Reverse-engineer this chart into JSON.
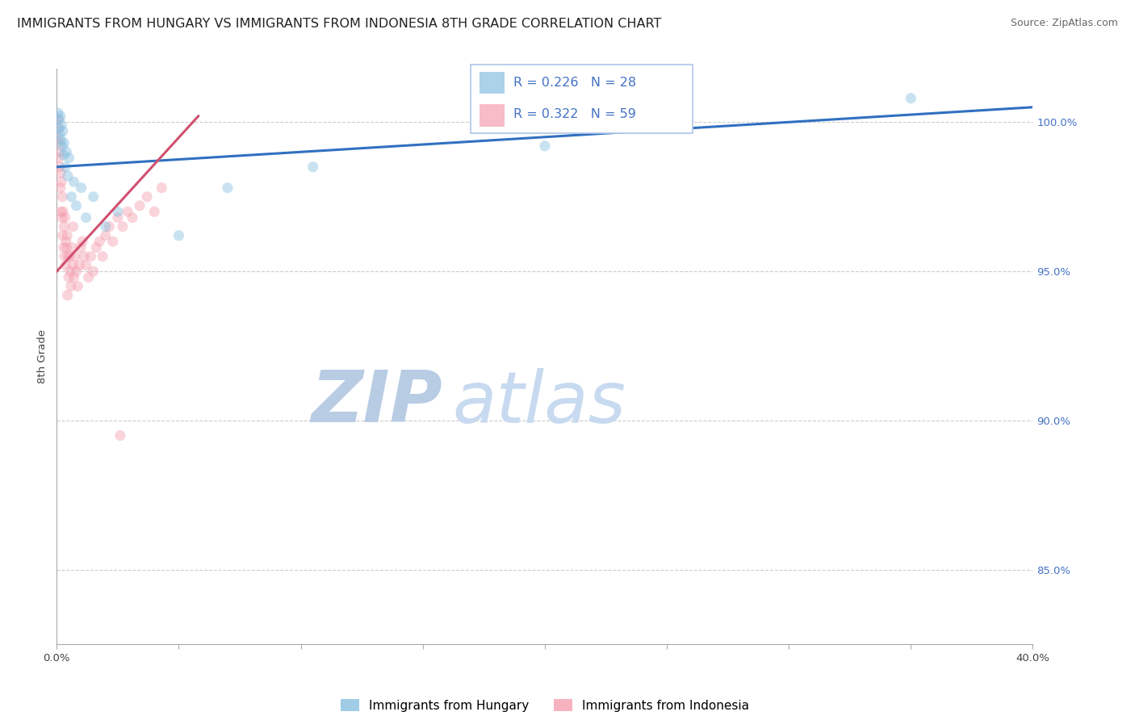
{
  "title": "IMMIGRANTS FROM HUNGARY VS IMMIGRANTS FROM INDONESIA 8TH GRADE CORRELATION CHART",
  "source": "Source: ZipAtlas.com",
  "ylabel": "8th Grade",
  "legend_hungary": "Immigrants from Hungary",
  "legend_indonesia": "Immigrants from Indonesia",
  "hungary_R": 0.226,
  "hungary_N": 28,
  "indonesia_R": 0.322,
  "indonesia_N": 59,
  "hungary_color": "#88c0e0",
  "indonesia_color": "#f4a0b0",
  "hungary_line_color": "#3070c0",
  "indonesia_line_color": "#d05070",
  "xlim": [
    0.0,
    40.0
  ],
  "ylim": [
    82.5,
    101.8
  ],
  "x_ticks": [
    0.0,
    5.0,
    10.0,
    15.0,
    20.0,
    25.0,
    30.0,
    35.0,
    40.0
  ],
  "y_ticks": [
    85.0,
    90.0,
    95.0,
    100.0
  ],
  "hungary_x": [
    0.05,
    0.08,
    0.1,
    0.12,
    0.15,
    0.18,
    0.2,
    0.22,
    0.25,
    0.28,
    0.3,
    0.35,
    0.4,
    0.45,
    0.5,
    0.6,
    0.7,
    0.8,
    1.0,
    1.2,
    1.5,
    2.0,
    2.5,
    5.0,
    7.0,
    10.5,
    20.0,
    35.0
  ],
  "hungary_y": [
    100.3,
    99.8,
    100.1,
    99.6,
    100.2,
    99.4,
    99.9,
    99.2,
    99.7,
    98.9,
    99.3,
    98.5,
    99.0,
    98.2,
    98.8,
    97.5,
    98.0,
    97.2,
    97.8,
    96.8,
    97.5,
    96.5,
    97.0,
    96.2,
    97.8,
    98.5,
    99.2,
    100.8
  ],
  "indonesia_x": [
    0.03,
    0.05,
    0.07,
    0.08,
    0.1,
    0.11,
    0.13,
    0.15,
    0.16,
    0.18,
    0.19,
    0.21,
    0.23,
    0.24,
    0.26,
    0.28,
    0.3,
    0.32,
    0.34,
    0.36,
    0.38,
    0.4,
    0.43,
    0.46,
    0.49,
    0.52,
    0.55,
    0.58,
    0.62,
    0.66,
    0.7,
    0.75,
    0.8,
    0.86,
    0.92,
    0.98,
    1.05,
    1.12,
    1.2,
    1.3,
    1.4,
    1.5,
    1.62,
    1.75,
    1.88,
    2.0,
    2.15,
    2.3,
    2.5,
    2.7,
    2.9,
    3.1,
    3.4,
    3.7,
    4.0,
    4.3,
    0.44,
    0.67,
    2.6
  ],
  "indonesia_y": [
    99.5,
    100.1,
    99.8,
    98.8,
    99.3,
    98.5,
    99.0,
    97.8,
    98.3,
    97.0,
    98.0,
    96.8,
    97.5,
    96.2,
    97.0,
    95.8,
    96.5,
    95.5,
    96.8,
    95.2,
    96.0,
    95.8,
    96.2,
    95.5,
    94.8,
    95.5,
    95.0,
    94.5,
    95.8,
    95.2,
    94.8,
    95.5,
    95.0,
    94.5,
    95.2,
    95.8,
    96.0,
    95.5,
    95.2,
    94.8,
    95.5,
    95.0,
    95.8,
    96.0,
    95.5,
    96.2,
    96.5,
    96.0,
    96.8,
    96.5,
    97.0,
    96.8,
    97.2,
    97.5,
    97.0,
    97.8,
    94.2,
    96.5,
    89.5
  ],
  "watermark_zip_color": "#b8cce4",
  "watermark_atlas_color": "#c8daf0",
  "title_fontsize": 11.5,
  "tick_fontsize": 9.5,
  "marker_size": 90,
  "marker_alpha": 0.45,
  "line_width": 2.2,
  "hungary_trend_y0": 98.5,
  "hungary_trend_y1": 100.5,
  "indonesia_trend_x0": 0.0,
  "indonesia_trend_y0": 95.0,
  "indonesia_trend_x1": 5.8,
  "indonesia_trend_y1": 100.2
}
